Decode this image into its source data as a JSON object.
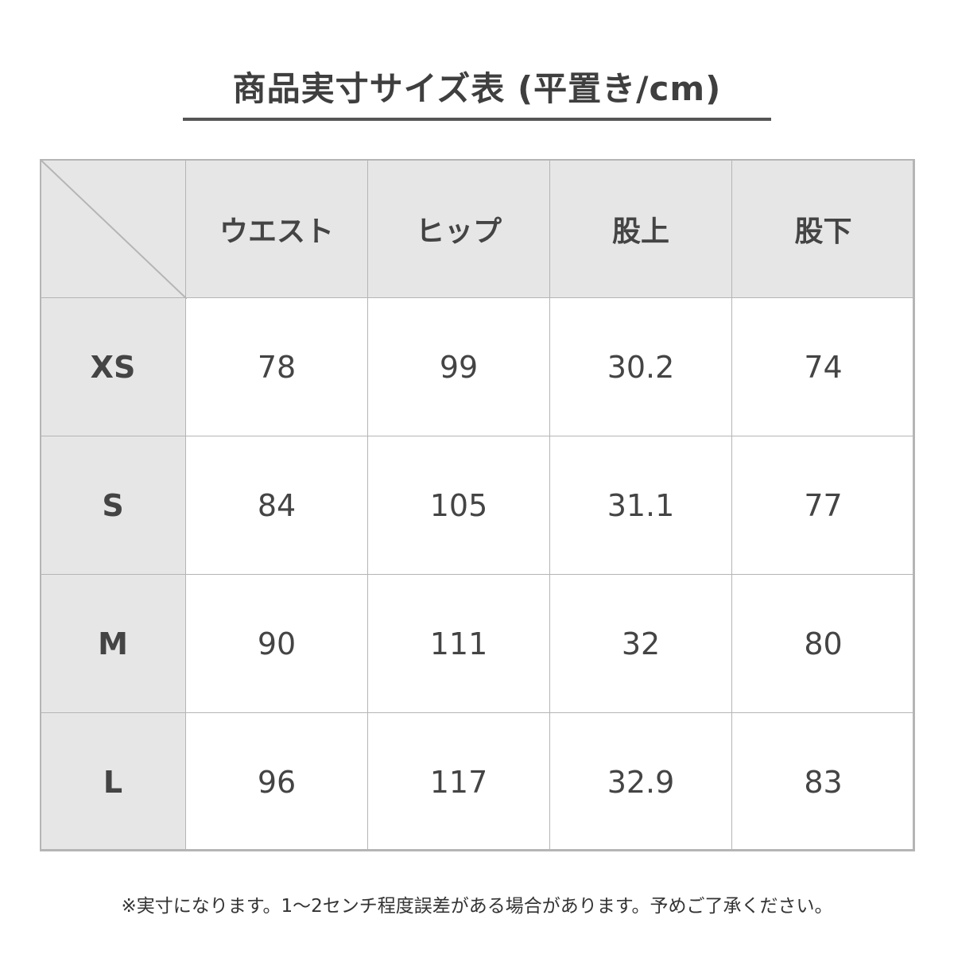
{
  "title": "商品実寸サイズ表 (平置き/cm)",
  "table": {
    "columns": [
      "ウエスト",
      "ヒップ",
      "股上",
      "股下"
    ],
    "rows": [
      {
        "size": "XS",
        "values": [
          "78",
          "99",
          "30.2",
          "74"
        ]
      },
      {
        "size": "S",
        "values": [
          "84",
          "105",
          "31.1",
          "77"
        ]
      },
      {
        "size": "M",
        "values": [
          "90",
          "111",
          "32",
          "80"
        ]
      },
      {
        "size": "L",
        "values": [
          "96",
          "117",
          "32.9",
          "83"
        ]
      }
    ]
  },
  "note": "※実寸になります。1～2センチ程度誤差がある場合があります。予めご了承ください。",
  "colors": {
    "header_bg": "#e6e6e6",
    "border": "#b5b5b5",
    "text": "#444444"
  }
}
